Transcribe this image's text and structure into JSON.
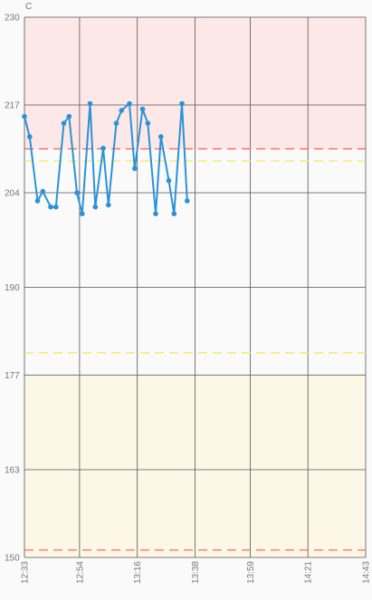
{
  "chart_data": {
    "type": "line",
    "unit": "C",
    "ylim": [
      150,
      230
    ],
    "y_ticks": [
      "230",
      "217",
      "204",
      "190",
      "177",
      "163",
      "150"
    ],
    "y_tick_values": [
      230,
      217,
      204,
      190,
      177,
      163,
      150
    ],
    "x_ticks": [
      "12:33",
      "12:54",
      "13:16",
      "13:38",
      "13:59",
      "14:21",
      "14:43"
    ],
    "x_range": [
      "12:33",
      "14:43"
    ],
    "grid": true,
    "legend": "none",
    "bands": [
      {
        "from": 210.5,
        "to": 230,
        "color": "#fde8e8"
      },
      {
        "from": 150,
        "to": 177.2,
        "color": "#fcf7e6"
      }
    ],
    "threshold_lines": [
      {
        "value": 210.5,
        "color": "#ff5a4e",
        "style": "dashed"
      },
      {
        "value": 208.7,
        "color": "#f5e84a",
        "style": "dashed"
      },
      {
        "value": 180.3,
        "color": "#f5e84a",
        "style": "dashed"
      },
      {
        "value": 151.1,
        "color": "#ff5a4e",
        "style": "dashed"
      }
    ],
    "series": [
      {
        "color": "#2a92d8",
        "x": [
          "12:33",
          "12:35",
          "12:38",
          "12:40",
          "12:43",
          "12:45",
          "12:48",
          "12:50",
          "12:53",
          "12:55",
          "12:58",
          "13:00",
          "13:03",
          "13:05",
          "13:08",
          "13:10",
          "13:13",
          "13:15",
          "13:18",
          "13:20",
          "13:23",
          "13:25",
          "13:28",
          "13:30",
          "13:33",
          "13:35"
        ],
        "values": [
          215.3,
          212.3,
          202.8,
          204.2,
          201.9,
          201.9,
          214.3,
          215.3,
          204.0,
          200.9,
          217.2,
          201.9,
          210.6,
          202.2,
          214.3,
          216.2,
          217.2,
          207.6,
          216.4,
          214.3,
          200.9,
          212.3,
          205.8,
          200.9,
          217.2,
          202.8
        ]
      }
    ]
  }
}
